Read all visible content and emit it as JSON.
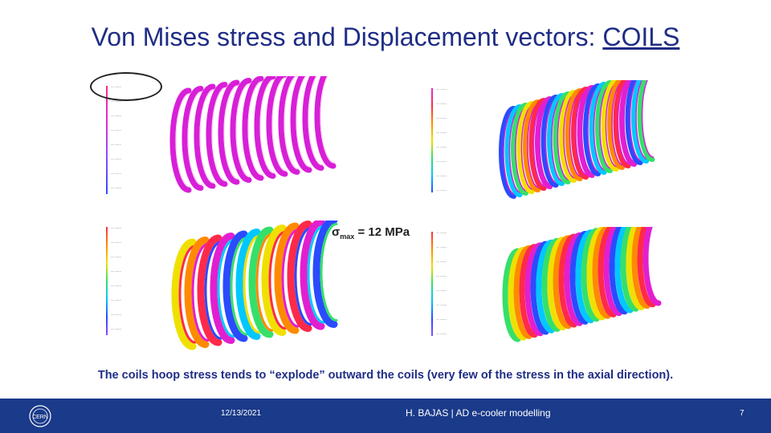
{
  "slide": {
    "title_main": "Von Mises stress and Displacement vectors: ",
    "title_underlined": "COILS",
    "sigma_symbol": "σ",
    "sigma_subscript": "max",
    "sigma_value": " = 12 MPa",
    "caption": "The coils hoop stress tends to “explode” outward the coils (very few of the stress in the axial direction)."
  },
  "footer": {
    "date": "12/13/2021",
    "author": "H. BAJAS | AD e-cooler modelling",
    "page": "7",
    "logo_icon": "cern-logo-icon"
  },
  "colors": {
    "title": "#1f2d86",
    "footer_bg": "#1a3a8a",
    "magenta": "#d81fd8",
    "rainbow": [
      "#2b4bff",
      "#00c8ff",
      "#35e06a",
      "#f0e000",
      "#ff8a00",
      "#ff2a4a",
      "#e21fd0"
    ]
  }
}
